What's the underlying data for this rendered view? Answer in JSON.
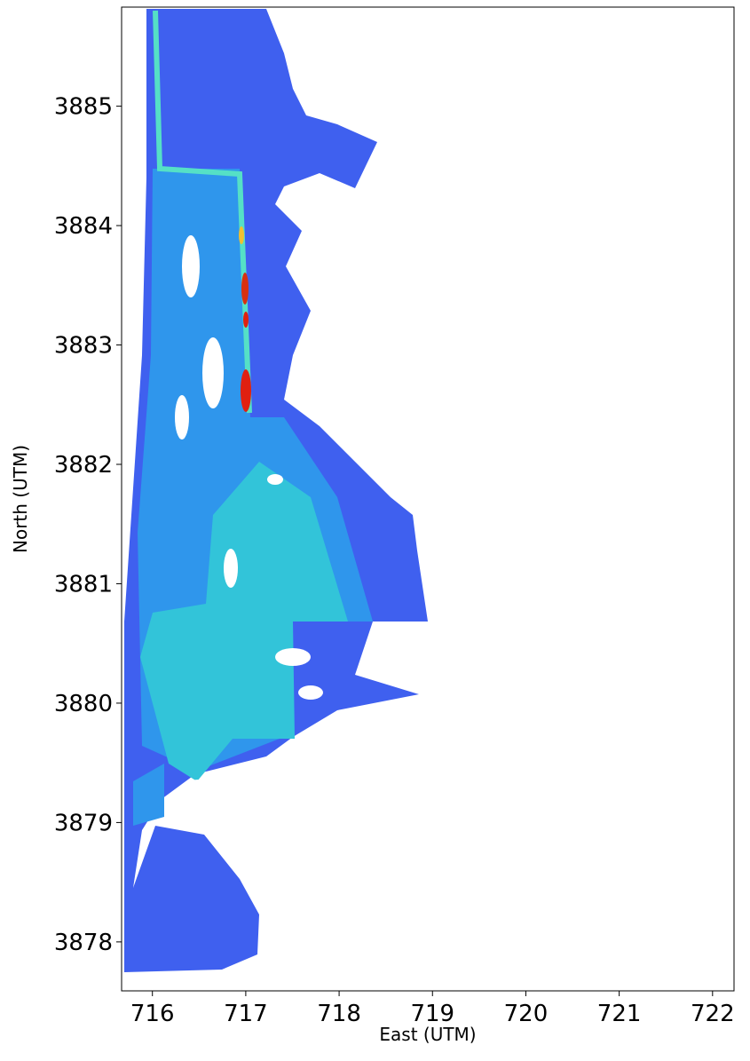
{
  "chart_data": {
    "type": "heatmap",
    "xlabel": "East (UTM)",
    "ylabel": "North (UTM)",
    "xlim": [
      715.67,
      722.23
    ],
    "xticks": [
      716,
      717,
      718,
      719,
      720,
      721,
      722
    ],
    "ylim": [
      3877.59,
      3885.83
    ],
    "yticks": [
      3878,
      3879,
      3880,
      3881,
      3882,
      3883,
      3884,
      3885
    ]
  }
}
